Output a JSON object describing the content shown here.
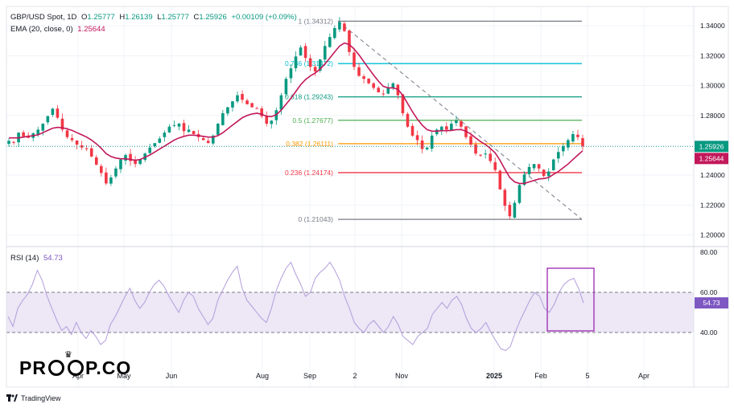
{
  "header": {
    "symbol": "GBP/USD Spot, 1D",
    "open_label": "O",
    "open": "1.25777",
    "high_label": "H",
    "high": "1.26139",
    "low_label": "L",
    "low": "1.25777",
    "close_label": "C",
    "close": "1.25926",
    "change": "+0.00109 (+0.09%)",
    "ema_label": "EMA (20, close, 0)",
    "ema_value": "1.25644",
    "rsi_label": "RSI (14)",
    "rsi_value": "54.73"
  },
  "brand": {
    "text": "PRO P.CO",
    "part1": "PR",
    "part2": "P.CO",
    "crown": "♛"
  },
  "footer": {
    "tradingview": "TradingView"
  },
  "colors": {
    "up": "#089981",
    "down": "#f23645",
    "ema": "#c2185b",
    "rsi": "#b39ddb",
    "rsi_band": "#ede7f6",
    "fib_1": "#787b86",
    "fib_786": "#00bcd4",
    "fib_618": "#089981",
    "fib_5": "#4caf50",
    "fib_382": "#ff9800",
    "fib_236": "#f23645",
    "fib_0": "#787b86",
    "rsi_box": "#9c27b0",
    "price_label_bg": "#089981",
    "ema_label_bg": "#c2185b",
    "rsi_label_bg": "#7e57c2"
  },
  "chart_data": [
    {
      "type": "candlestick",
      "title": "GBP/USD Spot, 1D",
      "x_ticks": [
        "Apr",
        "May",
        "Jun",
        "Aug",
        "Sep",
        "2",
        "Nov",
        "2025",
        "Feb",
        "5",
        "Apr"
      ],
      "y_ticks": [
        "1.34000",
        "1.32000",
        "1.30000",
        "1.28000",
        "1.26000",
        "1.24000",
        "1.22000",
        "1.20000"
      ],
      "ylim": [
        1.196,
        1.346
      ],
      "last_price": 1.25926,
      "last_price_label": "1.25926",
      "ema_last_label": "1.25644",
      "ema_length": 20,
      "fibonacci": [
        {
          "level": "1",
          "price": 1.34312,
          "label": "1 (1.34312)"
        },
        {
          "level": "0.786",
          "price": 1.31472,
          "label": "0.786 (1.31472)"
        },
        {
          "level": "0.618",
          "price": 1.29243,
          "label": "0.618 (1.29243)"
        },
        {
          "level": "0.5",
          "price": 1.27677,
          "label": "0.5 (1.27677)"
        },
        {
          "level": "0.382",
          "price": 1.26111,
          "label": "0.382 (1.26111)"
        },
        {
          "level": "0.236",
          "price": 1.24174,
          "label": "0.236 (1.24174)"
        },
        {
          "level": "0",
          "price": 1.21043,
          "label": "0 (1.21043)"
        }
      ],
      "trendline": {
        "from_price": 1.3431,
        "to_price": 1.2105
      },
      "close_path": [
        1.263,
        1.262,
        1.2685,
        1.266,
        1.265,
        1.268,
        1.2705,
        1.2745,
        1.2795,
        1.2845,
        1.2785,
        1.2705,
        1.2655,
        1.2635,
        1.2605,
        1.2585,
        1.2575,
        1.2525,
        1.247,
        1.2415,
        1.2345,
        1.2385,
        1.2445,
        1.2505,
        1.2535,
        1.2495,
        1.2475,
        1.2505,
        1.2545,
        1.2585,
        1.2615,
        1.2645,
        1.2685,
        1.2725,
        1.2735,
        1.2745,
        1.2695,
        1.2705,
        1.2675,
        1.2655,
        1.2635,
        1.2615,
        1.2665,
        1.2745,
        1.2815,
        1.2855,
        1.2895,
        1.2935,
        1.2905,
        1.2875,
        1.2855,
        1.2845,
        1.2795,
        1.2745,
        1.2765,
        1.2835,
        1.2935,
        1.3045,
        1.3115,
        1.3195,
        1.3255,
        1.3185,
        1.3125,
        1.3095,
        1.3175,
        1.3265,
        1.3325,
        1.3385,
        1.3425,
        1.3365,
        1.3225,
        1.3125,
        1.3065,
        1.3045,
        1.3015,
        1.2985,
        1.2955,
        1.2945,
        1.2985,
        1.3015,
        1.2935,
        1.2815,
        1.2725,
        1.2665,
        1.2635,
        1.2575,
        1.2585,
        1.2665,
        1.2705,
        1.2725,
        1.2705,
        1.2745,
        1.2765,
        1.2725,
        1.2655,
        1.2605,
        1.2545,
        1.2535,
        1.2545,
        1.2495,
        1.2435,
        1.2305,
        1.2195,
        1.2125,
        1.2215,
        1.2335,
        1.2405,
        1.2455,
        1.2475,
        1.2445,
        1.2395,
        1.2425,
        1.2505,
        1.2555,
        1.2595,
        1.2635,
        1.2675,
        1.2655,
        1.2593
      ],
      "ema_path": [
        1.265,
        1.265,
        1.265,
        1.2655,
        1.266,
        1.2665,
        1.267,
        1.2685,
        1.27,
        1.2715,
        1.272,
        1.2718,
        1.271,
        1.27,
        1.2685,
        1.267,
        1.2655,
        1.2635,
        1.261,
        1.258,
        1.2545,
        1.2525,
        1.2515,
        1.251,
        1.251,
        1.2505,
        1.25,
        1.2505,
        1.252,
        1.2535,
        1.2555,
        1.2575,
        1.2595,
        1.2615,
        1.2635,
        1.265,
        1.266,
        1.2668,
        1.2668,
        1.2665,
        1.266,
        1.2655,
        1.2655,
        1.2665,
        1.2685,
        1.271,
        1.2735,
        1.276,
        1.2785,
        1.28,
        1.281,
        1.2815,
        1.2808,
        1.2795,
        1.2792,
        1.2805,
        1.2835,
        1.2875,
        1.2915,
        1.296,
        1.3005,
        1.304,
        1.3065,
        1.3085,
        1.311,
        1.3145,
        1.3185,
        1.3225,
        1.3265,
        1.3285,
        1.3275,
        1.3245,
        1.3205,
        1.316,
        1.3115,
        1.307,
        1.303,
        1.2995,
        1.2985,
        1.2985,
        1.2975,
        1.2935,
        1.288,
        1.2825,
        1.2775,
        1.2735,
        1.2705,
        1.2695,
        1.2695,
        1.2698,
        1.2698,
        1.27,
        1.2705,
        1.2705,
        1.2695,
        1.2675,
        1.265,
        1.2625,
        1.2605,
        1.258,
        1.255,
        1.25,
        1.244,
        1.2385,
        1.2355,
        1.2345,
        1.2345,
        1.2355,
        1.2365,
        1.2375,
        1.2378,
        1.2385,
        1.2405,
        1.2425,
        1.245,
        1.2475,
        1.2505,
        1.2535,
        1.2564
      ]
    },
    {
      "type": "line",
      "title": "RSI (14)",
      "y_ticks": [
        "80.00",
        "60.00",
        "40.00"
      ],
      "ylim": [
        32,
        80
      ],
      "band": [
        40,
        60
      ],
      "last_value": 54.73,
      "last_value_label": "54.73",
      "values": [
        48,
        43,
        52,
        56,
        59,
        64,
        71,
        66,
        58,
        52,
        46,
        41,
        43,
        39,
        45,
        40,
        37,
        41,
        38,
        34,
        36,
        44,
        48,
        53,
        58,
        62,
        56,
        52,
        55,
        60,
        64,
        66,
        63,
        58,
        54,
        50,
        56,
        60,
        58,
        52,
        48,
        44,
        47,
        56,
        61,
        66,
        70,
        73,
        62,
        56,
        53,
        50,
        47,
        45,
        52,
        61,
        67,
        72,
        75,
        69,
        64,
        58,
        60,
        67,
        70,
        72,
        75,
        71,
        66,
        58,
        52,
        45,
        42,
        40,
        44,
        46,
        43,
        40,
        43,
        48,
        44,
        38,
        36,
        34,
        38,
        40,
        42,
        49,
        52,
        55,
        52,
        56,
        58,
        54,
        47,
        42,
        40,
        42,
        45,
        40,
        36,
        32,
        31,
        33,
        40,
        46,
        51,
        56,
        60,
        58,
        52,
        50,
        54,
        60,
        64,
        66,
        67,
        62,
        54.73
      ]
    }
  ]
}
